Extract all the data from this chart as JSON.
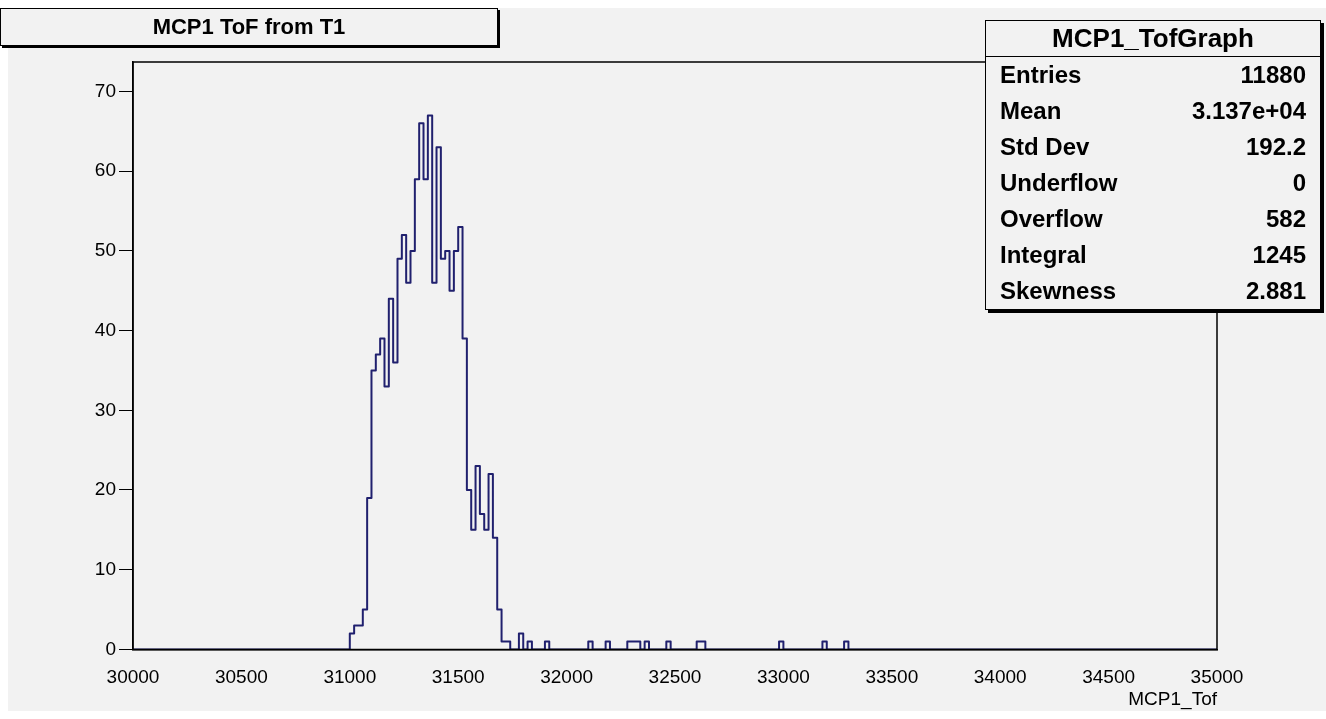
{
  "chart_data": {
    "type": "histogram",
    "title": "MCP1 ToF from T1",
    "xlabel": "MCP1_Tof",
    "bins": [
      30000,
      31000,
      31020,
      31040,
      31060,
      31080,
      31100,
      31120,
      31140,
      31160,
      31180,
      31200,
      31220,
      31240,
      31260,
      31280,
      31300,
      31320,
      31340,
      31360,
      31380,
      31400,
      31420,
      31440,
      31460,
      31480,
      31500,
      31520,
      31540,
      31560,
      31580,
      31600,
      31620,
      31640,
      31660,
      31680,
      31700,
      31720,
      31740,
      31780,
      31800,
      31820,
      31840,
      31900,
      31920,
      32100,
      32120,
      32180,
      32200,
      32280,
      32300,
      32320,
      32340,
      32360,
      32380,
      32460,
      32480,
      32600,
      32620,
      32640,
      32980,
      33000,
      33180,
      33200,
      33280,
      33300,
      35000
    ],
    "values": [
      0,
      2,
      3,
      3,
      5,
      19,
      35,
      37,
      39,
      33,
      44,
      36,
      49,
      52,
      46,
      50,
      59,
      66,
      59,
      67,
      46,
      63,
      49,
      50,
      45,
      50,
      53,
      39,
      20,
      15,
      23,
      17,
      15,
      22,
      14,
      5,
      1,
      1,
      0,
      2,
      0,
      1,
      0,
      1,
      0,
      1,
      0,
      1,
      0,
      1,
      1,
      1,
      0,
      1,
      0,
      1,
      0,
      1,
      1,
      0,
      1,
      0,
      1,
      0,
      1,
      0
    ],
    "color": "#20206e",
    "xlim": [
      30000,
      35000
    ],
    "xticks": [
      30000,
      30500,
      31000,
      31500,
      32000,
      32500,
      33000,
      33500,
      34000,
      34500,
      35000
    ],
    "ylim": [
      0,
      73.7
    ],
    "yticks": [
      0,
      10,
      20,
      30,
      40,
      50,
      60,
      70
    ],
    "grid": false,
    "legend": false,
    "annotations": [
      "MCP1_TofGraph",
      "Entries",
      "11880",
      "Mean",
      "3.137e+04",
      "Std Dev",
      "192.2",
      "Underflow",
      "0",
      "Overflow",
      "582",
      "Integral",
      "1245",
      "Skewness",
      "2.881"
    ]
  }
}
